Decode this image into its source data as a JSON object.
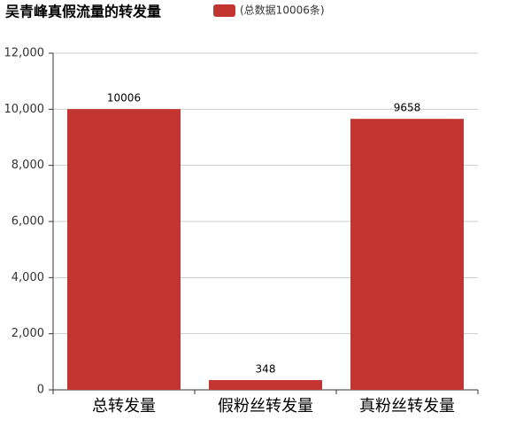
{
  "chart_data": {
    "type": "bar",
    "title": "吴青峰真假流量的转发量",
    "categories": [
      "总转发量",
      "假粉丝转发量",
      "真粉丝转发量"
    ],
    "series": [
      {
        "name": "(总数据10006条)",
        "color": "#c23531",
        "values": [
          10006,
          348,
          9658
        ]
      }
    ],
    "ylim": [
      0,
      12000
    ],
    "yticks": [
      0,
      {
        "value": 2000,
        "label": "2,000"
      },
      {
        "value": 4000,
        "label": "4,000"
      },
      {
        "value": 6000,
        "label": "6,000"
      },
      {
        "value": 8000,
        "label": "8,000"
      },
      {
        "value": 10000,
        "label": "10,000"
      },
      {
        "value": 12000,
        "label": "12,000"
      }
    ],
    "grid": true
  }
}
